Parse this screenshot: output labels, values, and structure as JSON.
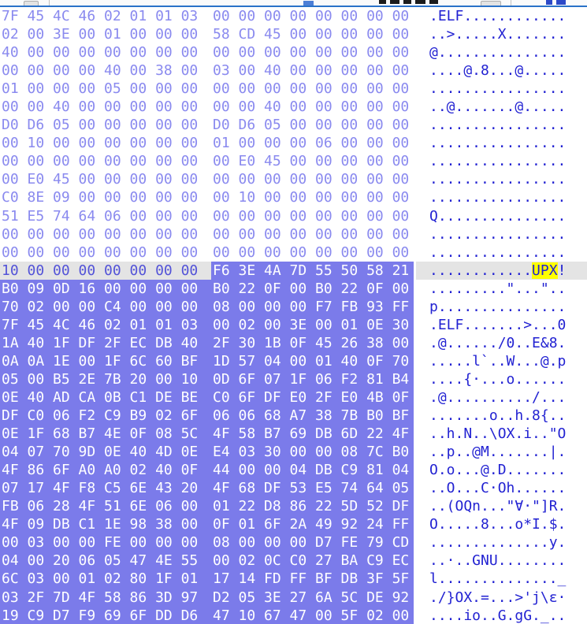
{
  "app": {
    "view": "hex-editor",
    "bytes_per_row": 16,
    "visible_rows": 34
  },
  "colors": {
    "background": "#ffffff",
    "hex_text": "#8a8aef",
    "ascii_text": "#2222d2",
    "selection_bg": "#7b7bea",
    "selection_text": "#ffffff",
    "caret_row_bg": "#e4e4e4",
    "caret_row_hex_text": "#5353d8",
    "search_match_bg": "#ffff00",
    "toolbar_accent": "#2a72c8"
  },
  "selection": {
    "starts_at_row": 15,
    "starts_at_byte": 9,
    "extends_to": "end-of-view",
    "match_text": "UPX!",
    "highlighted_match": "UPX"
  },
  "toolbar": {
    "icons": [
      "toolbar-button",
      "separator",
      "address-chip",
      "title-text-fragment",
      "toolbar-button",
      "separator",
      "blue-icon"
    ]
  },
  "hex_rows": [
    {
      "state": "normal",
      "left": "7F 45 4C 46 02 01 01 03",
      "right": "00 00 00 00 00 00 00 00",
      "ascii": ".ELF............"
    },
    {
      "state": "normal",
      "left": "02 00 3E 00 01 00 00 00",
      "right": "58 CD 45 00 00 00 00 00",
      "ascii": "..>.....X......."
    },
    {
      "state": "normal",
      "left": "40 00 00 00 00 00 00 00",
      "right": "00 00 00 00 00 00 00 00",
      "ascii": "@..............."
    },
    {
      "state": "normal",
      "left": "00 00 00 00 40 00 38 00",
      "right": "03 00 40 00 00 00 00 00",
      "ascii": "....@.8...@....."
    },
    {
      "state": "normal",
      "left": "01 00 00 00 05 00 00 00",
      "right": "00 00 00 00 00 00 00 00",
      "ascii": "................"
    },
    {
      "state": "normal",
      "left": "00 00 40 00 00 00 00 00",
      "right": "00 00 40 00 00 00 00 00",
      "ascii": "..@.......@....."
    },
    {
      "state": "normal",
      "left": "D0 D6 05 00 00 00 00 00",
      "right": "D0 D6 05 00 00 00 00 00",
      "ascii": "................"
    },
    {
      "state": "normal",
      "left": "00 10 00 00 00 00 00 00",
      "right": "01 00 00 00 06 00 00 00",
      "ascii": "................"
    },
    {
      "state": "normal",
      "left": "00 00 00 00 00 00 00 00",
      "right": "00 E0 45 00 00 00 00 00",
      "ascii": "................"
    },
    {
      "state": "normal",
      "left": "00 E0 45 00 00 00 00 00",
      "right": "00 00 00 00 00 00 00 00",
      "ascii": "................"
    },
    {
      "state": "normal",
      "left": "C0 8E 09 00 00 00 00 00",
      "right": "00 10 00 00 00 00 00 00",
      "ascii": "................"
    },
    {
      "state": "normal",
      "left": "51 E5 74 64 06 00 00 00",
      "right": "00 00 00 00 00 00 00 00",
      "ascii": "Q..............."
    },
    {
      "state": "normal",
      "left": "00 00 00 00 00 00 00 00",
      "right": "00 00 00 00 00 00 00 00",
      "ascii": "................"
    },
    {
      "state": "normal",
      "left": "00 00 00 00 00 00 00 00",
      "right": "00 00 00 00 00 00 00 00",
      "ascii": "................"
    },
    {
      "state": "caret",
      "left": "10 00 00 00 00 00 00 00",
      "right": "F6 3E 4A 7D 55 50 58 21",
      "ascii_pre": "............",
      "ascii_match": "UPX",
      "ascii_post": "!"
    },
    {
      "state": "selected",
      "left": "B0 09 0D 16 00 00 00 00",
      "right": "B0 22 0F 00 B0 22 0F 00",
      "ascii": ".........\"...\".."
    },
    {
      "state": "selected",
      "left": "70 02 00 00 C4 00 00 00",
      "right": "08 00 00 00 F7 FB 93 FF",
      "ascii": "p..............."
    },
    {
      "state": "selected",
      "left": "7F 45 4C 46 02 01 01 03",
      "right": "00 02 00 3E 00 01 0E 30",
      "ascii": ".ELF.......>...0"
    },
    {
      "state": "selected",
      "left": "1A 40 1F DF 2F EC DB 40",
      "right": "2F 30 1B 0F 45 26 38 00",
      "ascii": ".@....../0..E&8."
    },
    {
      "state": "selected",
      "left": "0A 0A 1E 00 1F 6C 60 BF",
      "right": "1D 57 04 00 01 40 0F 70",
      "ascii": ".....l`..W...@.p"
    },
    {
      "state": "selected",
      "left": "05 00 B5 2E 7B 20 00 10",
      "right": "0D 6F 07 1F 06 F2 81 B4",
      "ascii": "....{·...o......"
    },
    {
      "state": "selected",
      "left": "0E 40 AD CA 0B C1 DE BE",
      "right": "C0 6F DF E0 2F E0 4B 0F",
      "ascii": ".@........../..."
    },
    {
      "state": "selected",
      "left": "DF C0 06 F2 C9 B9 02 6F",
      "right": "06 06 68 A7 38 7B B0 BF",
      "ascii": ".......o..h.8{.."
    },
    {
      "state": "selected",
      "left": "0E 1F 68 B7 4E 0F 08 5C",
      "right": "4F 58 B7 69 DB 6D 22 4F",
      "ascii": "..h.N..\\OX.i..\"O"
    },
    {
      "state": "selected",
      "left": "04 07 70 9D 0E 40 4D 0E",
      "right": "E4 03 30 00 00 08 7C B0",
      "ascii": "..p..@M.......|."
    },
    {
      "state": "selected",
      "left": "4F 86 6F A0 A0 02 40 0F",
      "right": "44 00 00 04 DB C9 81 04",
      "ascii": "O.o...@.D......."
    },
    {
      "state": "selected",
      "left": "07 17 4F F8 C5 6E 43 20",
      "right": "4F 68 DF 53 E5 74 64 05",
      "ascii": "..O...C·Oh......"
    },
    {
      "state": "selected",
      "left": "FB 06 28 4F 51 6E 06 00",
      "right": "01 22 D8 86 22 5D 52 DF",
      "ascii": "..(OQn...\"∀·\"]R."
    },
    {
      "state": "selected",
      "left": "4F 09 DB C1 1E 98 38 00",
      "right": "0F 01 6F 2A 49 92 24 FF",
      "ascii": "O.....8...o*I.$."
    },
    {
      "state": "selected",
      "left": "00 03 00 00 FE 00 00 00",
      "right": "08 00 00 00 D7 FE 79 CD",
      "ascii": "..............y."
    },
    {
      "state": "selected",
      "left": "04 00 20 06 05 47 4E 55",
      "right": "00 02 0C C0 27 BA C9 EC",
      "ascii": "..·..GNU........"
    },
    {
      "state": "selected",
      "left": "6C 03 00 01 02 80 1F 01",
      "right": "17 14 FD FF BF DB 3F 5F",
      "ascii": "l.............._"
    },
    {
      "state": "selected",
      "left": "03 2F 7D 4F 58 86 3D 97",
      "right": "D2 05 3E 27 6A 5C DE 92",
      "ascii": "./}OX.=...>'j\\ε·"
    },
    {
      "state": "selected",
      "left": "19 C9 D7 F9 69 6F DD D6",
      "right": "47 10 67 47 00 5F 02 00",
      "ascii": "....io..G.gG._.."
    }
  ]
}
